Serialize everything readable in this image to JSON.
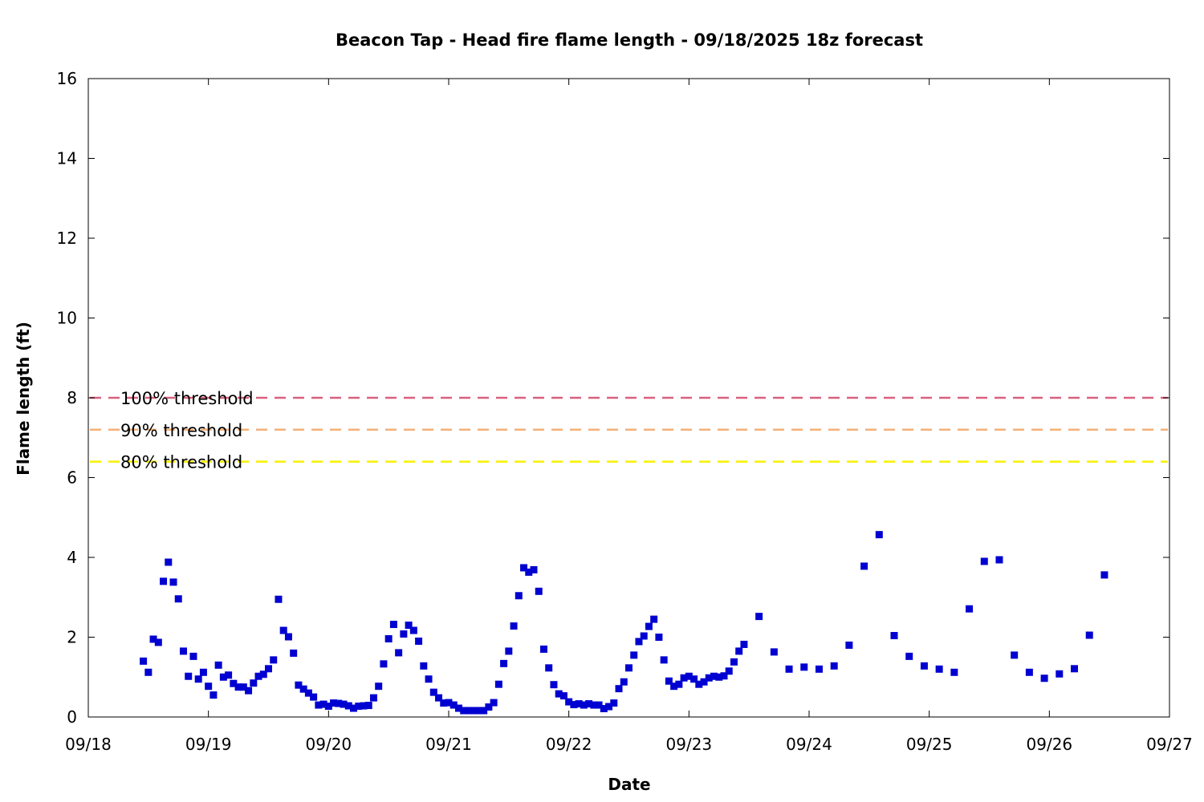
{
  "chart_data": {
    "type": "scatter",
    "title": "Beacon Tap - Head fire flame length - 09/18/2025 18z forecast",
    "xlabel": "Date",
    "ylabel": "Flame length (ft)",
    "xlim": [
      "2025-09-18",
      "2025-09-27"
    ],
    "ylim": [
      0,
      16
    ],
    "x_tick_labels": [
      "09/18",
      "09/19",
      "09/20",
      "09/21",
      "09/22",
      "09/23",
      "09/24",
      "09/25",
      "09/26",
      "09/27"
    ],
    "y_tick_labels": [
      "0",
      "2",
      "4",
      "6",
      "8",
      "10",
      "12",
      "14",
      "16"
    ],
    "grid": false,
    "point_color": "#0000d0",
    "thresholds": [
      {
        "label": "100% threshold",
        "value": 8.0,
        "color": "#d9607e"
      },
      {
        "label": "90% threshold",
        "value": 7.2,
        "color": "#f2b27a"
      },
      {
        "label": "80% threshold",
        "value": 6.4,
        "color": "#f7f000"
      }
    ],
    "series": [
      {
        "points": [
          [
            "2025-09-18 11:00",
            1.4
          ],
          [
            "2025-09-18 12:00",
            1.12
          ],
          [
            "2025-09-18 13:00",
            1.95
          ],
          [
            "2025-09-18 14:00",
            1.87
          ],
          [
            "2025-09-18 15:00",
            3.4
          ],
          [
            "2025-09-18 16:00",
            3.88
          ],
          [
            "2025-09-18 17:00",
            3.38
          ],
          [
            "2025-09-18 18:00",
            2.96
          ],
          [
            "2025-09-18 19:00",
            1.65
          ],
          [
            "2025-09-18 20:00",
            1.02
          ],
          [
            "2025-09-18 21:00",
            1.52
          ],
          [
            "2025-09-18 22:00",
            0.95
          ],
          [
            "2025-09-18 23:00",
            1.12
          ],
          [
            "2025-09-19 00:00",
            0.77
          ],
          [
            "2025-09-19 01:00",
            0.55
          ],
          [
            "2025-09-19 02:00",
            1.3
          ],
          [
            "2025-09-19 03:00",
            1.0
          ],
          [
            "2025-09-19 04:00",
            1.05
          ],
          [
            "2025-09-19 05:00",
            0.84
          ],
          [
            "2025-09-19 06:00",
            0.75
          ],
          [
            "2025-09-19 07:00",
            0.75
          ],
          [
            "2025-09-19 08:00",
            0.66
          ],
          [
            "2025-09-19 09:00",
            0.85
          ],
          [
            "2025-09-19 10:00",
            1.02
          ],
          [
            "2025-09-19 11:00",
            1.07
          ],
          [
            "2025-09-19 12:00",
            1.21
          ],
          [
            "2025-09-19 13:00",
            1.43
          ],
          [
            "2025-09-19 14:00",
            2.95
          ],
          [
            "2025-09-19 15:00",
            2.17
          ],
          [
            "2025-09-19 16:00",
            2.01
          ],
          [
            "2025-09-19 17:00",
            1.6
          ],
          [
            "2025-09-19 18:00",
            0.8
          ],
          [
            "2025-09-19 19:00",
            0.7
          ],
          [
            "2025-09-19 20:00",
            0.6
          ],
          [
            "2025-09-19 21:00",
            0.5
          ],
          [
            "2025-09-19 22:00",
            0.3
          ],
          [
            "2025-09-19 23:00",
            0.32
          ],
          [
            "2025-09-20 00:00",
            0.27
          ],
          [
            "2025-09-20 01:00",
            0.35
          ],
          [
            "2025-09-20 02:00",
            0.34
          ],
          [
            "2025-09-20 03:00",
            0.32
          ],
          [
            "2025-09-20 04:00",
            0.28
          ],
          [
            "2025-09-20 05:00",
            0.22
          ],
          [
            "2025-09-20 06:00",
            0.27
          ],
          [
            "2025-09-20 07:00",
            0.28
          ],
          [
            "2025-09-20 08:00",
            0.29
          ],
          [
            "2025-09-20 09:00",
            0.48
          ],
          [
            "2025-09-20 10:00",
            0.77
          ],
          [
            "2025-09-20 11:00",
            1.33
          ],
          [
            "2025-09-20 12:00",
            1.96
          ],
          [
            "2025-09-20 13:00",
            2.32
          ],
          [
            "2025-09-20 14:00",
            1.61
          ],
          [
            "2025-09-20 15:00",
            2.08
          ],
          [
            "2025-09-20 16:00",
            2.3
          ],
          [
            "2025-09-20 17:00",
            2.17
          ],
          [
            "2025-09-20 18:00",
            1.9
          ],
          [
            "2025-09-20 19:00",
            1.28
          ],
          [
            "2025-09-20 20:00",
            0.95
          ],
          [
            "2025-09-20 21:00",
            0.62
          ],
          [
            "2025-09-20 22:00",
            0.48
          ],
          [
            "2025-09-20 23:00",
            0.35
          ],
          [
            "2025-09-21 00:00",
            0.36
          ],
          [
            "2025-09-21 01:00",
            0.3
          ],
          [
            "2025-09-21 02:00",
            0.22
          ],
          [
            "2025-09-21 03:00",
            0.16
          ],
          [
            "2025-09-21 04:00",
            0.16
          ],
          [
            "2025-09-21 05:00",
            0.16
          ],
          [
            "2025-09-21 06:00",
            0.16
          ],
          [
            "2025-09-21 07:00",
            0.16
          ],
          [
            "2025-09-21 08:00",
            0.25
          ],
          [
            "2025-09-21 09:00",
            0.36
          ],
          [
            "2025-09-21 10:00",
            0.82
          ],
          [
            "2025-09-21 11:00",
            1.34
          ],
          [
            "2025-09-21 12:00",
            1.65
          ],
          [
            "2025-09-21 13:00",
            2.28
          ],
          [
            "2025-09-21 14:00",
            3.04
          ],
          [
            "2025-09-21 15:00",
            3.74
          ],
          [
            "2025-09-21 16:00",
            3.63
          ],
          [
            "2025-09-21 17:00",
            3.69
          ],
          [
            "2025-09-21 18:00",
            3.15
          ],
          [
            "2025-09-21 19:00",
            1.7
          ],
          [
            "2025-09-21 20:00",
            1.23
          ],
          [
            "2025-09-21 21:00",
            0.81
          ],
          [
            "2025-09-21 22:00",
            0.58
          ],
          [
            "2025-09-21 23:00",
            0.53
          ],
          [
            "2025-09-22 00:00",
            0.38
          ],
          [
            "2025-09-22 01:00",
            0.31
          ],
          [
            "2025-09-22 02:00",
            0.33
          ],
          [
            "2025-09-22 03:00",
            0.3
          ],
          [
            "2025-09-22 04:00",
            0.33
          ],
          [
            "2025-09-22 05:00",
            0.3
          ],
          [
            "2025-09-22 06:00",
            0.3
          ],
          [
            "2025-09-22 07:00",
            0.21
          ],
          [
            "2025-09-22 08:00",
            0.26
          ],
          [
            "2025-09-22 09:00",
            0.35
          ],
          [
            "2025-09-22 10:00",
            0.71
          ],
          [
            "2025-09-22 11:00",
            0.88
          ],
          [
            "2025-09-22 12:00",
            1.23
          ],
          [
            "2025-09-22 13:00",
            1.55
          ],
          [
            "2025-09-22 14:00",
            1.89
          ],
          [
            "2025-09-22 15:00",
            2.03
          ],
          [
            "2025-09-22 16:00",
            2.27
          ],
          [
            "2025-09-22 17:00",
            2.45
          ],
          [
            "2025-09-22 18:00",
            2.0
          ],
          [
            "2025-09-22 19:00",
            1.43
          ],
          [
            "2025-09-22 20:00",
            0.9
          ],
          [
            "2025-09-22 21:00",
            0.77
          ],
          [
            "2025-09-22 22:00",
            0.82
          ],
          [
            "2025-09-22 23:00",
            0.98
          ],
          [
            "2025-09-23 00:00",
            1.02
          ],
          [
            "2025-09-23 01:00",
            0.95
          ],
          [
            "2025-09-23 02:00",
            0.82
          ],
          [
            "2025-09-23 03:00",
            0.88
          ],
          [
            "2025-09-23 04:00",
            0.98
          ],
          [
            "2025-09-23 05:00",
            1.02
          ],
          [
            "2025-09-23 06:00",
            1.0
          ],
          [
            "2025-09-23 07:00",
            1.03
          ],
          [
            "2025-09-23 08:00",
            1.15
          ],
          [
            "2025-09-23 09:00",
            1.38
          ],
          [
            "2025-09-23 10:00",
            1.65
          ],
          [
            "2025-09-23 11:00",
            1.82
          ],
          [
            "2025-09-23 14:00",
            2.52
          ],
          [
            "2025-09-23 17:00",
            1.63
          ],
          [
            "2025-09-23 20:00",
            1.2
          ],
          [
            "2025-09-23 23:00",
            1.25
          ],
          [
            "2025-09-24 02:00",
            1.2
          ],
          [
            "2025-09-24 05:00",
            1.28
          ],
          [
            "2025-09-24 08:00",
            1.8
          ],
          [
            "2025-09-24 11:00",
            3.78
          ],
          [
            "2025-09-24 14:00",
            4.57
          ],
          [
            "2025-09-24 17:00",
            2.04
          ],
          [
            "2025-09-24 20:00",
            1.52
          ],
          [
            "2025-09-24 23:00",
            1.28
          ],
          [
            "2025-09-25 02:00",
            1.2
          ],
          [
            "2025-09-25 05:00",
            1.12
          ],
          [
            "2025-09-25 08:00",
            2.71
          ],
          [
            "2025-09-25 11:00",
            3.9
          ],
          [
            "2025-09-25 14:00",
            3.94
          ],
          [
            "2025-09-25 17:00",
            1.55
          ],
          [
            "2025-09-25 20:00",
            1.12
          ],
          [
            "2025-09-25 23:00",
            0.97
          ],
          [
            "2025-09-26 02:00",
            1.08
          ],
          [
            "2025-09-26 05:00",
            1.21
          ],
          [
            "2025-09-26 08:00",
            2.05
          ],
          [
            "2025-09-26 11:00",
            3.56
          ]
        ]
      }
    ]
  }
}
